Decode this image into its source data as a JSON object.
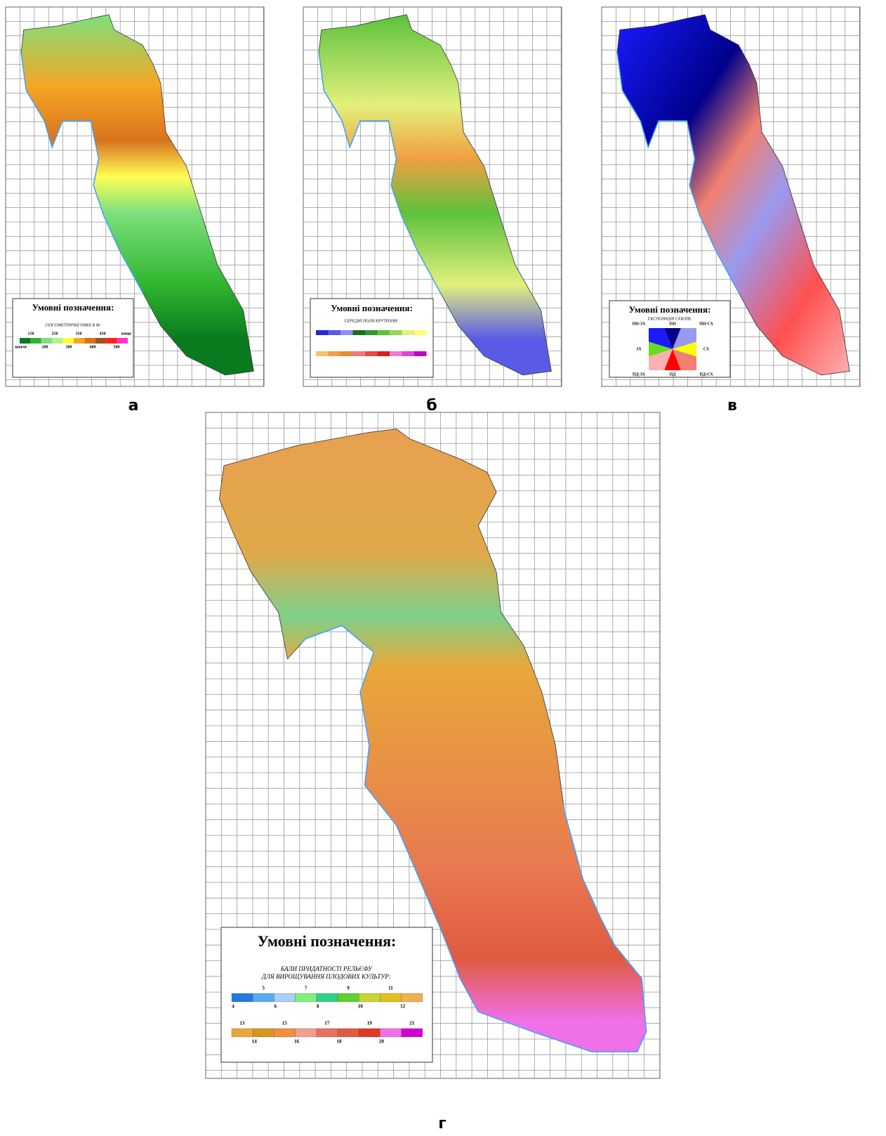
{
  "panels": {
    "a": {
      "label": "а",
      "legend_title": "Умовні позначення:",
      "legend_subtitle": "ГІПСОМЕТРИЧНІ РІВНІ В М:",
      "top_labels": [
        "150",
        "250",
        "350",
        "450",
        "вище"
      ],
      "bottom_labels": [
        "нижче",
        "200",
        "300",
        "400",
        "500"
      ],
      "swatches": [
        "#0a7a1e",
        "#2fb52f",
        "#7de07d",
        "#b6f08c",
        "#ffff33",
        "#f5a623",
        "#d9731e",
        "#a0521a",
        "#ff2020",
        "#ff33cc"
      ]
    },
    "b": {
      "label": "б",
      "legend_title": "Умовні позначення:",
      "legend_subtitle": "СЕРЕДНІ ПОЛЯ КРУТИЗНИ:",
      "row1": [
        "#2626d9",
        "#5a5ae6",
        "#8f8fee",
        "#1e6b1e",
        "#2e9a2e",
        "#5cc23c",
        "#9ad65a",
        "#e3f07c",
        "#ffff66"
      ],
      "row2": [
        "#f5c36b",
        "#f0a040",
        "#e88a3a",
        "#f07a7a",
        "#e84848",
        "#d62020",
        "#f07ad0",
        "#e040e0",
        "#c000c0"
      ]
    },
    "c": {
      "label": "в",
      "legend_title": "Умовні позначення:",
      "legend_subtitle": "ЕКСПОЗИЦІЯ СХИЛІВ:",
      "directions": [
        {
          "label": "ПН-ЗХ",
          "color": "#1a1aff"
        },
        {
          "label": "ПН",
          "color": "#00008b"
        },
        {
          "label": "ПН-СХ",
          "color": "#9999ee"
        },
        {
          "label": "СХ",
          "color": "#ffff00"
        },
        {
          "label": "ПД-СХ",
          "color": "#f08070"
        },
        {
          "label": "ПД",
          "color": "#ff0000"
        },
        {
          "label": "ПД-ЗХ",
          "color": "#ffb0b0"
        },
        {
          "label": "ЗХ",
          "color": "#66dd22"
        }
      ]
    },
    "d": {
      "label": "г",
      "legend_title": "Умовні позначення:",
      "legend_subtitle": [
        "БАЛИ ПРИДАТНОСТІ РЕЛЬЄФУ",
        "ДЛЯ ВИРОЩУВАННЯ ПЛОДОВИХ КУЛЬТУР:"
      ],
      "row1": [
        {
          "label": "4",
          "color": "#1f7be0"
        },
        {
          "label": "5",
          "color": "#5aa8f0"
        },
        {
          "label": "6",
          "color": "#a8d0f5"
        },
        {
          "label": "7",
          "color": "#7ef07e"
        },
        {
          "label": "8",
          "color": "#2ed18a"
        },
        {
          "label": "9",
          "color": "#5ed12e"
        },
        {
          "label": "10",
          "color": "#c8d630"
        },
        {
          "label": "11",
          "color": "#e0c020"
        },
        {
          "label": "12",
          "color": "#f0b050"
        }
      ],
      "row2": [
        {
          "label": "13",
          "color": "#e8a83a"
        },
        {
          "label": "14",
          "color": "#d9961e"
        },
        {
          "label": "15",
          "color": "#f09040"
        },
        {
          "label": "16",
          "color": "#f0a090"
        },
        {
          "label": "17",
          "color": "#e87060"
        },
        {
          "label": "18",
          "color": "#e05a40"
        },
        {
          "label": "19",
          "color": "#e03a20"
        },
        {
          "label": "20",
          "color": "#f070e8"
        },
        {
          "label": "21",
          "color": "#d000d0"
        }
      ]
    }
  }
}
